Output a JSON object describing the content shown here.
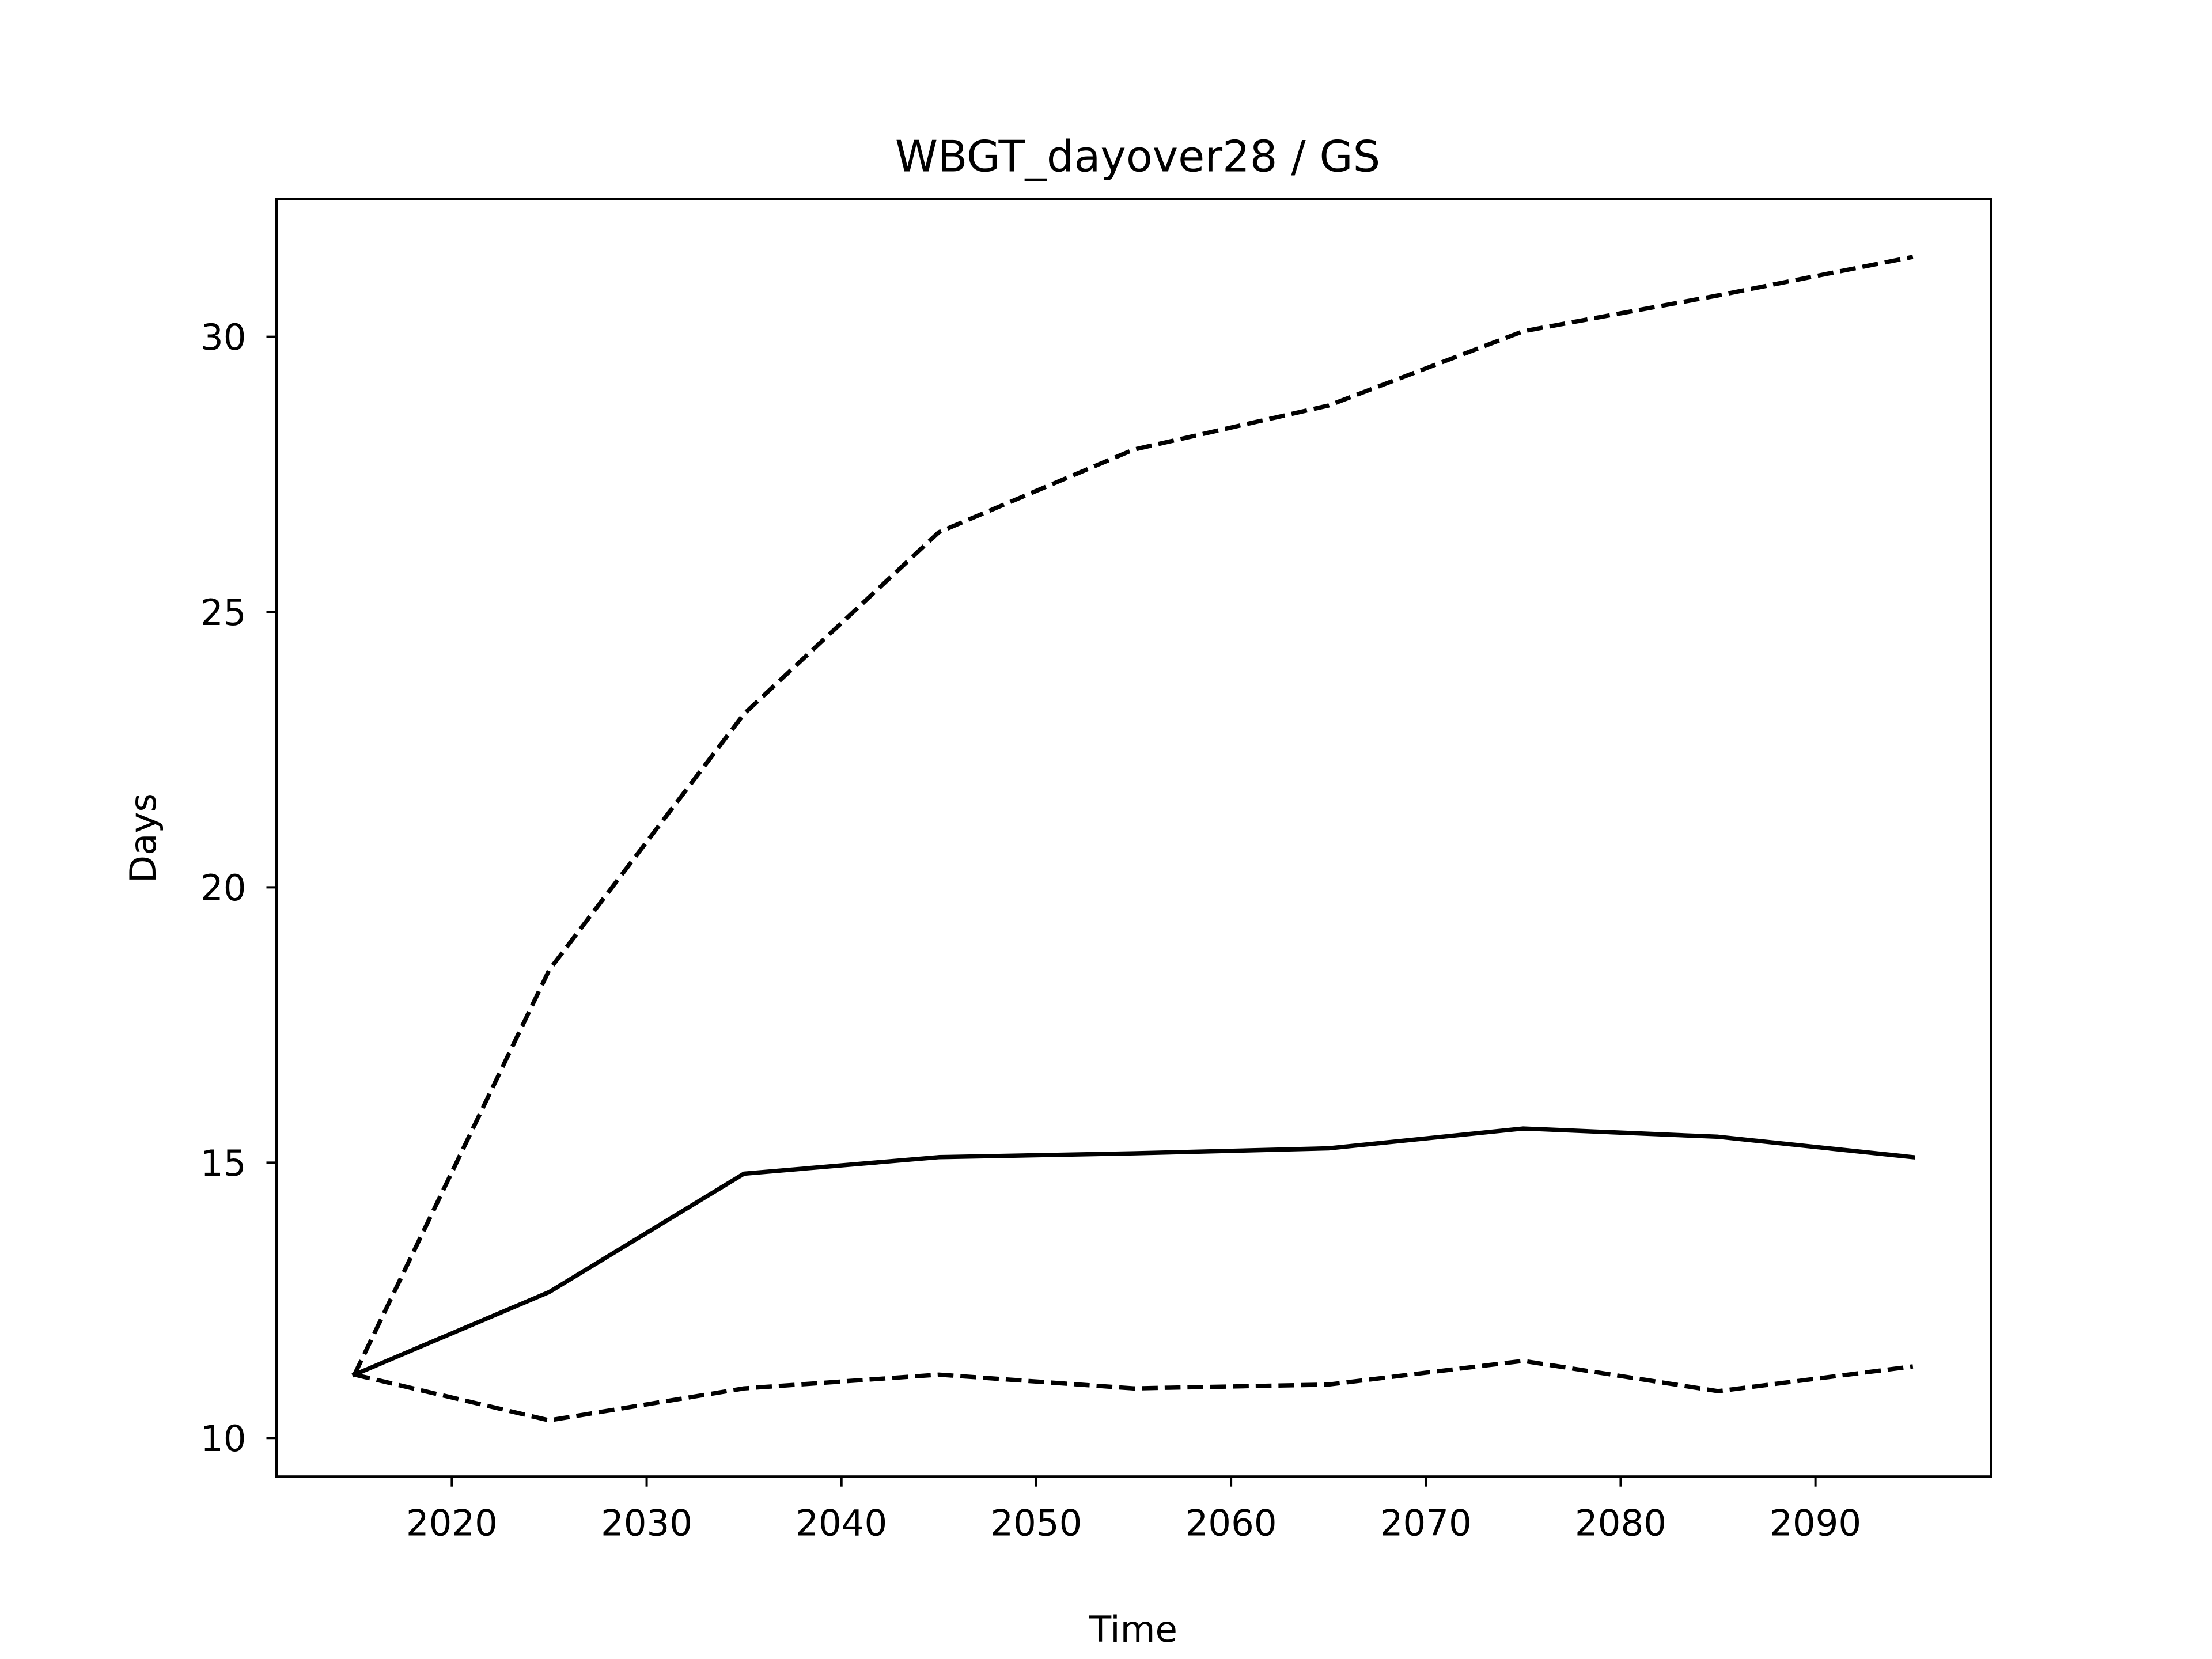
{
  "chart_data": {
    "type": "line",
    "title": "WBGT_dayover28 / GS",
    "xlabel": "Time",
    "ylabel": "Days",
    "xlim": [
      2011,
      2099
    ],
    "ylim": [
      9.3,
      32.5
    ],
    "xticks": [
      2020,
      2030,
      2040,
      2050,
      2060,
      2070,
      2080,
      2090
    ],
    "yticks": [
      10,
      15,
      20,
      25,
      30
    ],
    "grid": false,
    "x": [
      2015,
      2025,
      2035,
      2045,
      2055,
      2065,
      2075,
      2085,
      2095
    ],
    "series": [
      {
        "style": "solid",
        "color": "#000000",
        "values": [
          11.15,
          12.65,
          14.8,
          15.1,
          15.17,
          15.26,
          15.62,
          15.47,
          15.1
        ]
      },
      {
        "style": "dashed",
        "color": "#000000",
        "values": [
          11.15,
          18.5,
          23.15,
          26.45,
          27.95,
          28.75,
          30.1,
          30.75,
          31.45
        ]
      },
      {
        "style": "dashed",
        "color": "#000000",
        "values": [
          11.15,
          10.32,
          10.9,
          11.15,
          10.9,
          10.97,
          11.4,
          10.85,
          11.3
        ]
      }
    ]
  }
}
